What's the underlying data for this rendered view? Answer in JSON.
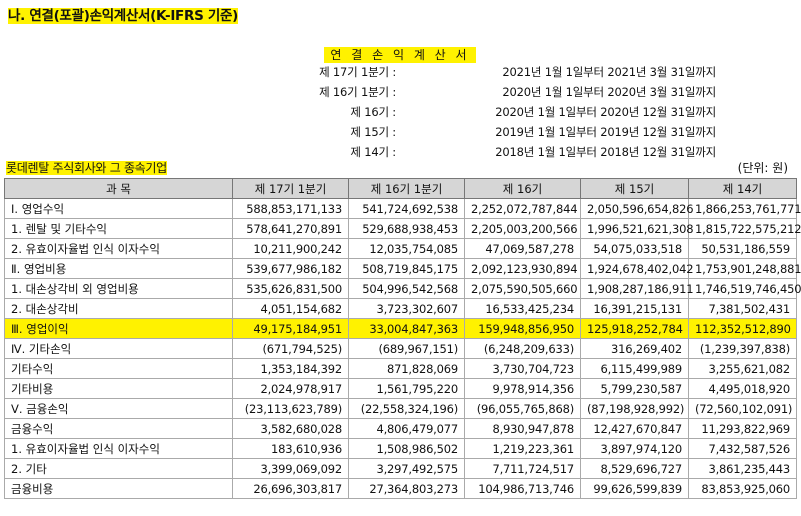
{
  "section_title": "나. 연결(포괄)손익계산서(K-IFRS 기준)",
  "statement_title": "연 결 손 익 계 산 서",
  "periods": [
    {
      "label": "제 17기 1분기 :",
      "range": "2021년 1월 1일부터 2021년 3월 31일까지"
    },
    {
      "label": "제 16기 1분기 :",
      "range": "2020년 1월 1일부터 2020년 3월 31일까지"
    },
    {
      "label": "제 16기 :",
      "range": "2020년 1월 1일부터 2020년 12월 31일까지"
    },
    {
      "label": "제 15기 :",
      "range": "2019년 1월 1일부터 2019년 12월 31일까지"
    },
    {
      "label": "제 14기 :",
      "range": "2018년 1월 1일부터 2018년 12월 31일까지"
    }
  ],
  "company": "롯데렌탈 주식회사와 그 종속기업",
  "unit": "(단위: 원)",
  "table": {
    "headers": [
      "과    목",
      "제 17기 1분기",
      "제 16기 1분기",
      "제 16기",
      "제 15기",
      "제 14기"
    ],
    "rows": [
      {
        "label": "Ⅰ. 영업수익",
        "values": [
          "588,853,171,133",
          "541,724,692,538",
          "2,252,072,787,844",
          "2,050,596,654,826",
          "1,866,253,761,771"
        ]
      },
      {
        "label": "1. 렌탈 및 기타수익",
        "values": [
          "578,641,270,891",
          "529,688,938,453",
          "2,205,003,200,566",
          "1,996,521,621,308",
          "1,815,722,575,212"
        ]
      },
      {
        "label": "2. 유효이자율법 인식 이자수익",
        "values": [
          "10,211,900,242",
          "12,035,754,085",
          "47,069,587,278",
          "54,075,033,518",
          "50,531,186,559"
        ]
      },
      {
        "label": "Ⅱ. 영업비용",
        "values": [
          "539,677,986,182",
          "508,719,845,175",
          "2,092,123,930,894",
          "1,924,678,402,042",
          "1,753,901,248,881"
        ]
      },
      {
        "label": "1. 대손상각비 외 영업비용",
        "values": [
          "535,626,831,500",
          "504,996,542,568",
          "2,075,590,505,660",
          "1,908,287,186,911",
          "1,746,519,746,450"
        ]
      },
      {
        "label": "2. 대손상각비",
        "values": [
          "4,051,154,682",
          "3,723,302,607",
          "16,533,425,234",
          "16,391,215,131",
          "7,381,502,431"
        ]
      },
      {
        "label": "Ⅲ. 영업이익",
        "highlight": true,
        "values": [
          "49,175,184,951",
          "33,004,847,363",
          "159,948,856,950",
          "125,918,252,784",
          "112,352,512,890"
        ]
      },
      {
        "label": "Ⅳ. 기타손익",
        "values": [
          "(671,794,525)",
          "(689,967,151)",
          "(6,248,209,633)",
          "316,269,402",
          "(1,239,397,838)"
        ]
      },
      {
        "label": "기타수익",
        "values": [
          "1,353,184,392",
          "871,828,069",
          "3,730,704,723",
          "6,115,499,989",
          "3,255,621,082"
        ]
      },
      {
        "label": "기타비용",
        "values": [
          "2,024,978,917",
          "1,561,795,220",
          "9,978,914,356",
          "5,799,230,587",
          "4,495,018,920"
        ]
      },
      {
        "label": "Ⅴ. 금융손익",
        "values": [
          "(23,113,623,789)",
          "(22,558,324,196)",
          "(96,055,765,868)",
          "(87,198,928,992)",
          "(72,560,102,091)"
        ]
      },
      {
        "label": "금융수익",
        "values": [
          "3,582,680,028",
          "4,806,479,077",
          "8,930,947,878",
          "12,427,670,847",
          "11,293,822,969"
        ]
      },
      {
        "label": "1. 유효이자율법 인식 이자수익",
        "values": [
          "183,610,936",
          "1,508,986,502",
          "1,219,223,361",
          "3,897,974,120",
          "7,432,587,526"
        ]
      },
      {
        "label": "2. 기타",
        "values": [
          "3,399,069,092",
          "3,297,492,575",
          "7,711,724,517",
          "8,529,696,727",
          "3,861,235,443"
        ]
      },
      {
        "label": "금융비용",
        "values": [
          "26,696,303,817",
          "27,364,803,273",
          "104,986,713,746",
          "99,626,599,839",
          "83,853,925,060"
        ]
      }
    ]
  }
}
